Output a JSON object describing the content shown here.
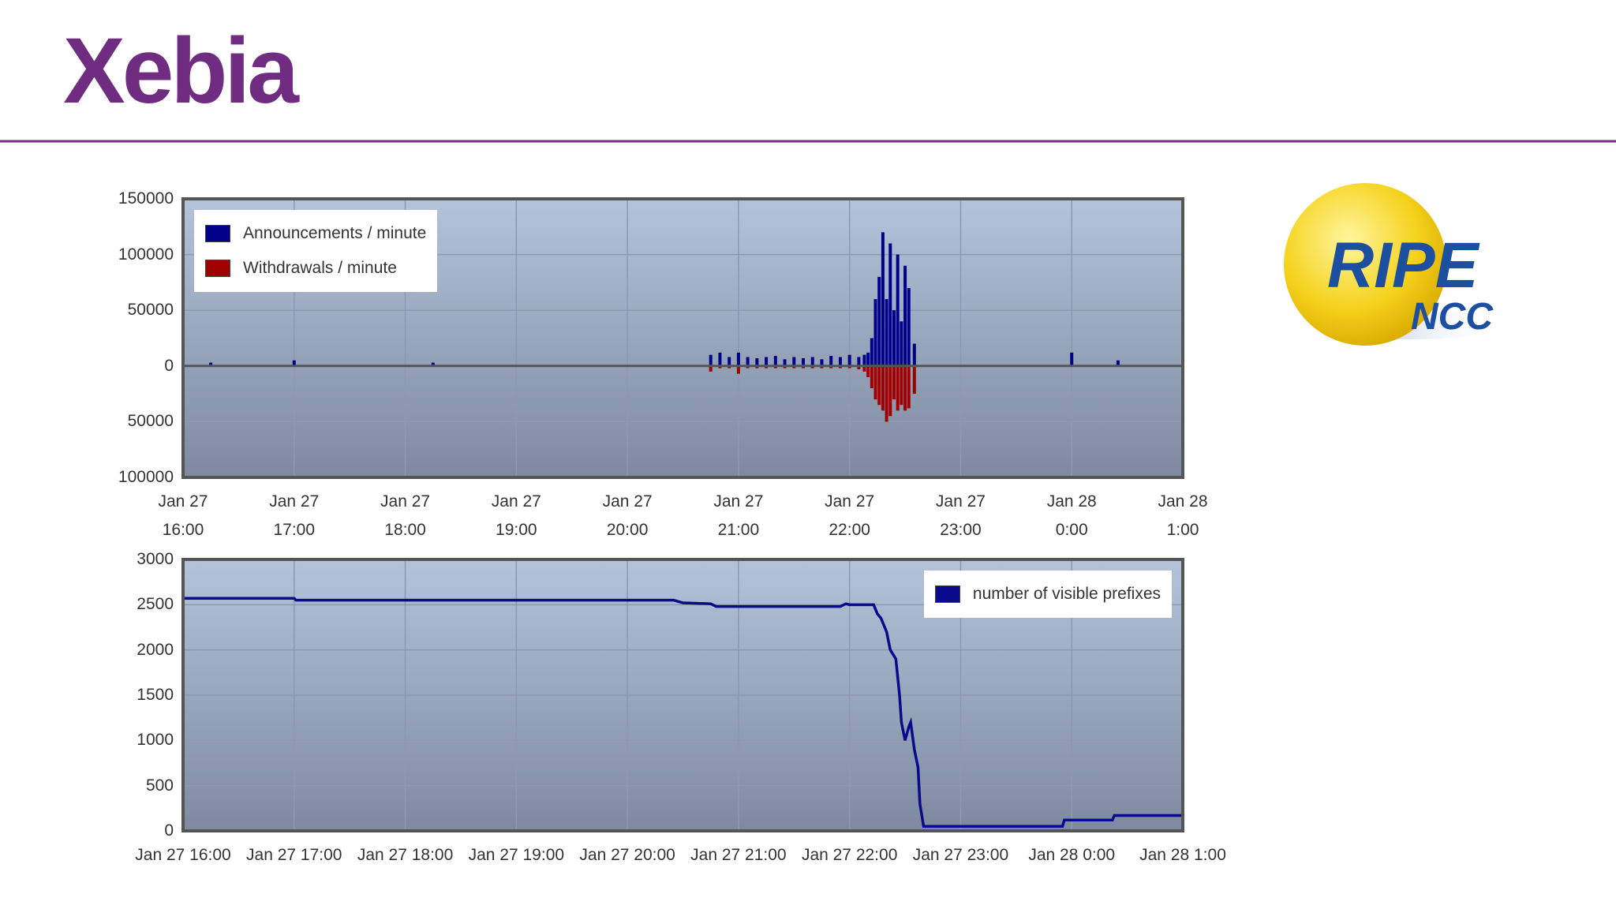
{
  "logo": {
    "text": "Xebia"
  },
  "badge": {
    "line1": "RIPE",
    "line2": "NCC"
  },
  "chart_data": [
    {
      "type": "bar",
      "x": [
        "Jan 27 16:15",
        "Jan 27 17:00",
        "Jan 27 18:15",
        "Jan 27 20:45",
        "Jan 27 20:50",
        "Jan 27 20:55",
        "Jan 27 21:00",
        "Jan 27 21:05",
        "Jan 27 21:10",
        "Jan 27 21:15",
        "Jan 27 21:20",
        "Jan 27 21:25",
        "Jan 27 21:30",
        "Jan 27 21:35",
        "Jan 27 21:40",
        "Jan 27 21:45",
        "Jan 27 21:50",
        "Jan 27 21:55",
        "Jan 27 22:00",
        "Jan 27 22:05",
        "Jan 27 22:08",
        "Jan 27 22:10",
        "Jan 27 22:12",
        "Jan 27 22:14",
        "Jan 27 22:16",
        "Jan 27 22:18",
        "Jan 27 22:20",
        "Jan 27 22:22",
        "Jan 27 22:24",
        "Jan 27 22:26",
        "Jan 27 22:28",
        "Jan 27 22:30",
        "Jan 27 22:32",
        "Jan 27 22:35",
        "Jan 28 0:00",
        "Jan 28 0:25"
      ],
      "series": [
        {
          "name": "Announcements / minute",
          "color": "#00008b",
          "values": [
            3000,
            5000,
            3000,
            10000,
            12000,
            8000,
            12000,
            8000,
            7000,
            8000,
            9000,
            6000,
            8000,
            7000,
            8000,
            6000,
            9000,
            8000,
            10000,
            8000,
            10000,
            12000,
            25000,
            60000,
            80000,
            120000,
            60000,
            110000,
            50000,
            100000,
            40000,
            90000,
            70000,
            20000,
            12000,
            5000
          ]
        },
        {
          "name": "Withdrawals / minute",
          "color": "#a00000",
          "values": [
            0,
            0,
            0,
            -5000,
            -2000,
            -2000,
            -7000,
            -2000,
            -2000,
            -2000,
            -2000,
            -2000,
            -2000,
            -2000,
            -2000,
            -2000,
            -2000,
            -2000,
            -2000,
            -3000,
            -5000,
            -10000,
            -20000,
            -30000,
            -35000,
            -40000,
            -50000,
            -45000,
            -30000,
            -40000,
            -35000,
            -40000,
            -38000,
            -25000,
            0,
            0
          ]
        }
      ],
      "xlim": [
        "Jan 27 16:00",
        "Jan 28 1:00"
      ],
      "xticks": [
        "Jan 27 16:00",
        "Jan 27 17:00",
        "Jan 27 18:00",
        "Jan 27 19:00",
        "Jan 27 20:00",
        "Jan 27 21:00",
        "Jan 27 22:00",
        "Jan 27 23:00",
        "Jan 28 0:00",
        "Jan 28 1:00"
      ],
      "ylim": [
        -100000,
        150000
      ],
      "yticks": [
        150000,
        100000,
        50000,
        0,
        {
          "value": -50000,
          "label": "50000"
        },
        {
          "value": -100000,
          "label": "100000"
        }
      ],
      "grid": true,
      "legend": "upper left"
    },
    {
      "type": "line",
      "x": [
        "Jan 27 16:00",
        "Jan 27 17:00",
        "Jan 27 17:01",
        "Jan 27 20:25",
        "Jan 27 20:30",
        "Jan 27 20:45",
        "Jan 27 20:48",
        "Jan 27 21:55",
        "Jan 27 21:58",
        "Jan 27 22:00",
        "Jan 27 22:13",
        "Jan 27 22:15",
        "Jan 27 22:17",
        "Jan 27 22:20",
        "Jan 27 22:22",
        "Jan 27 22:25",
        "Jan 27 22:27",
        "Jan 27 22:28",
        "Jan 27 22:30",
        "Jan 27 22:32",
        "Jan 27 22:33",
        "Jan 27 22:35",
        "Jan 27 22:37",
        "Jan 27 22:38",
        "Jan 27 22:40",
        "Jan 27 23:55",
        "Jan 27 23:56",
        "Jan 28 0:22",
        "Jan 28 0:23",
        "Jan 28 1:00"
      ],
      "series": [
        {
          "name": "number of visible prefixes",
          "color": "#0a0a8c",
          "values": [
            2570,
            2570,
            2550,
            2550,
            2520,
            2510,
            2480,
            2480,
            2510,
            2500,
            2500,
            2400,
            2350,
            2200,
            2000,
            1900,
            1500,
            1200,
            1000,
            1150,
            1200,
            900,
            700,
            300,
            50,
            50,
            120,
            120,
            170,
            170
          ]
        }
      ],
      "xlim": [
        "Jan 27 16:00",
        "Jan 28 1:00"
      ],
      "xticks": [
        "Jan 27 16:00",
        "Jan 27 17:00",
        "Jan 27 18:00",
        "Jan 27 19:00",
        "Jan 27 20:00",
        "Jan 27 21:00",
        "Jan 27 22:00",
        "Jan 27 23:00",
        "Jan 28 0:00",
        "Jan 28 1:00"
      ],
      "ylim": [
        0,
        3000
      ],
      "yticks": [
        0,
        500,
        1000,
        1500,
        2000,
        2500,
        3000
      ],
      "grid": true,
      "legend": "upper right"
    }
  ]
}
